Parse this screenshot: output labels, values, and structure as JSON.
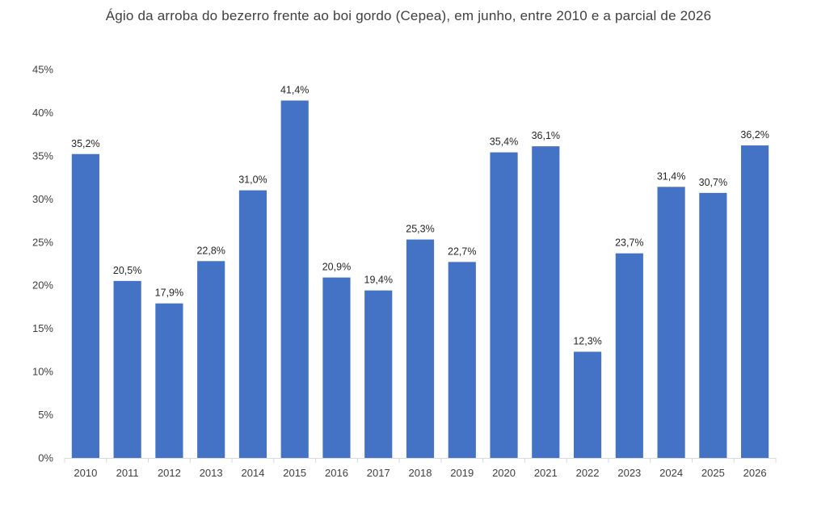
{
  "chart_data": {
    "type": "bar",
    "title": "Ágio da arroba do bezerro frente ao boi gordo (Cepea), em junho, entre 2010 e a parcial de 2026",
    "categories": [
      "2010",
      "2011",
      "2012",
      "2013",
      "2014",
      "2015",
      "2016",
      "2017",
      "2018",
      "2019",
      "2020",
      "2021",
      "2022",
      "2023",
      "2024",
      "2025",
      "2026"
    ],
    "values": [
      35.2,
      20.5,
      17.9,
      22.8,
      31.0,
      41.4,
      20.9,
      19.4,
      25.3,
      22.7,
      35.4,
      36.1,
      12.3,
      23.7,
      31.4,
      30.7,
      36.2
    ],
    "data_labels": [
      "35,2%",
      "20,5%",
      "17,9%",
      "22,8%",
      "31,0%",
      "41,4%",
      "20,9%",
      "19,4%",
      "25,3%",
      "22,7%",
      "35,4%",
      "36,1%",
      "12,3%",
      "23,7%",
      "31,4%",
      "30,7%",
      "36,2%"
    ],
    "y_ticks": [
      0,
      5,
      10,
      15,
      20,
      25,
      30,
      35,
      40,
      45
    ],
    "y_tick_labels": [
      "0%",
      "5%",
      "10%",
      "15%",
      "20%",
      "25%",
      "30%",
      "35%",
      "40%",
      "45%"
    ],
    "ylim": [
      0,
      45
    ],
    "xlabel": "",
    "ylabel": "",
    "grid": false,
    "legend": false,
    "bar_color": "#4472C4",
    "axis_color": "#D9D9D9"
  }
}
